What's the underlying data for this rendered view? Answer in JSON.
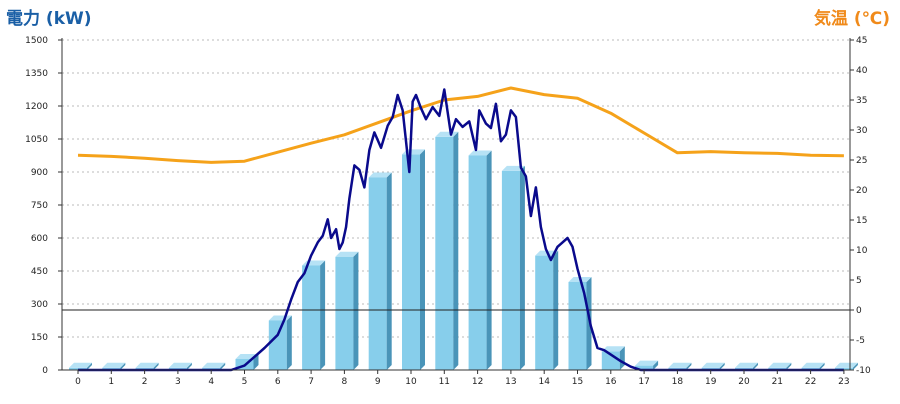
{
  "chart_data": {
    "type": "bar",
    "title": "",
    "y_left_label": "電力 (kW)",
    "y_right_label": "気温 (℃)",
    "colors": {
      "bar_front": "#87ceeb",
      "bar_side": "#4a94b8",
      "bar_top": "#b6e2f5",
      "power_line": "#0a0a8c",
      "temperature_line": "#f5a21a",
      "left_title": "#1a5fa6",
      "right_title": "#f08a1a",
      "grid": "#bbbbbb"
    },
    "x_ticks": [
      "0",
      "1",
      "2",
      "3",
      "4",
      "5",
      "6",
      "7",
      "8",
      "9",
      "10",
      "11",
      "12",
      "13",
      "14",
      "15",
      "16",
      "17",
      "18",
      "19",
      "20",
      "21",
      "22",
      "23"
    ],
    "y_left_ticks": [
      "0",
      "150",
      "300",
      "450",
      "600",
      "750",
      "900",
      "1050",
      "1200",
      "1350",
      "1500"
    ],
    "y_right_ticks": [
      "-10",
      "-5",
      "0",
      "5",
      "10",
      "15",
      "20",
      "25",
      "30",
      "35",
      "40",
      "45"
    ],
    "y_left_range": [
      0,
      1500
    ],
    "y_right_range": [
      -10,
      45
    ],
    "grid": true,
    "bars": {
      "categories": [
        0,
        1,
        2,
        3,
        4,
        5,
        6,
        7,
        8,
        9,
        10,
        11,
        12,
        13,
        14,
        15,
        16,
        17,
        18,
        19,
        20,
        21,
        22,
        23
      ],
      "values": [
        10,
        10,
        10,
        10,
        10,
        50,
        225,
        475,
        515,
        875,
        980,
        1060,
        975,
        905,
        520,
        400,
        85,
        20,
        10,
        10,
        10,
        10,
        10,
        10
      ]
    },
    "power_line": {
      "x": [
        0,
        1,
        2,
        3,
        4,
        4.6,
        5.0,
        5.3,
        5.6,
        6.0,
        6.2,
        6.4,
        6.6,
        6.8,
        7.0,
        7.2,
        7.35,
        7.5,
        7.6,
        7.75,
        7.85,
        7.95,
        8.05,
        8.15,
        8.3,
        8.45,
        8.6,
        8.75,
        8.9,
        9.1,
        9.3,
        9.45,
        9.6,
        9.75,
        9.95,
        10.05,
        10.15,
        10.3,
        10.45,
        10.65,
        10.85,
        11.0,
        11.2,
        11.35,
        11.55,
        11.75,
        11.95,
        12.05,
        12.25,
        12.4,
        12.55,
        12.7,
        12.85,
        13.0,
        13.15,
        13.3,
        13.45,
        13.6,
        13.75,
        13.9,
        14.05,
        14.2,
        14.4,
        14.55,
        14.7,
        14.85,
        15.0,
        15.2,
        15.4,
        15.6,
        15.8,
        16.0,
        16.3,
        16.6,
        16.9,
        17.2,
        17.5,
        17.8,
        18,
        19,
        20,
        21,
        22,
        23
      ],
      "values": [
        0,
        0,
        0,
        0,
        0,
        0,
        20,
        60,
        100,
        160,
        230,
        320,
        400,
        440,
        520,
        580,
        610,
        685,
        600,
        640,
        550,
        580,
        650,
        780,
        930,
        910,
        830,
        1000,
        1080,
        1010,
        1110,
        1150,
        1250,
        1180,
        900,
        1220,
        1250,
        1190,
        1140,
        1195,
        1155,
        1275,
        1070,
        1140,
        1105,
        1130,
        1000,
        1180,
        1120,
        1100,
        1210,
        1040,
        1070,
        1180,
        1150,
        920,
        880,
        700,
        830,
        650,
        550,
        500,
        560,
        580,
        600,
        560,
        460,
        350,
        200,
        100,
        90,
        70,
        40,
        15,
        0,
        0,
        0,
        0,
        0,
        0,
        0,
        0,
        0,
        0
      ]
    },
    "temperature_line": {
      "x": [
        0,
        1,
        2,
        3,
        4,
        5,
        6,
        7,
        8,
        9,
        10,
        11,
        12,
        13,
        14,
        15,
        16,
        17,
        18,
        19,
        20,
        21,
        22,
        23
      ],
      "values": [
        25.8,
        25.6,
        25.3,
        24.9,
        24.6,
        24.8,
        26.3,
        27.8,
        29.2,
        31.2,
        33.2,
        35.0,
        35.6,
        37.0,
        35.9,
        35.3,
        32.8,
        29.5,
        26.2,
        26.4,
        26.2,
        26.1,
        25.8,
        25.7
      ]
    }
  }
}
